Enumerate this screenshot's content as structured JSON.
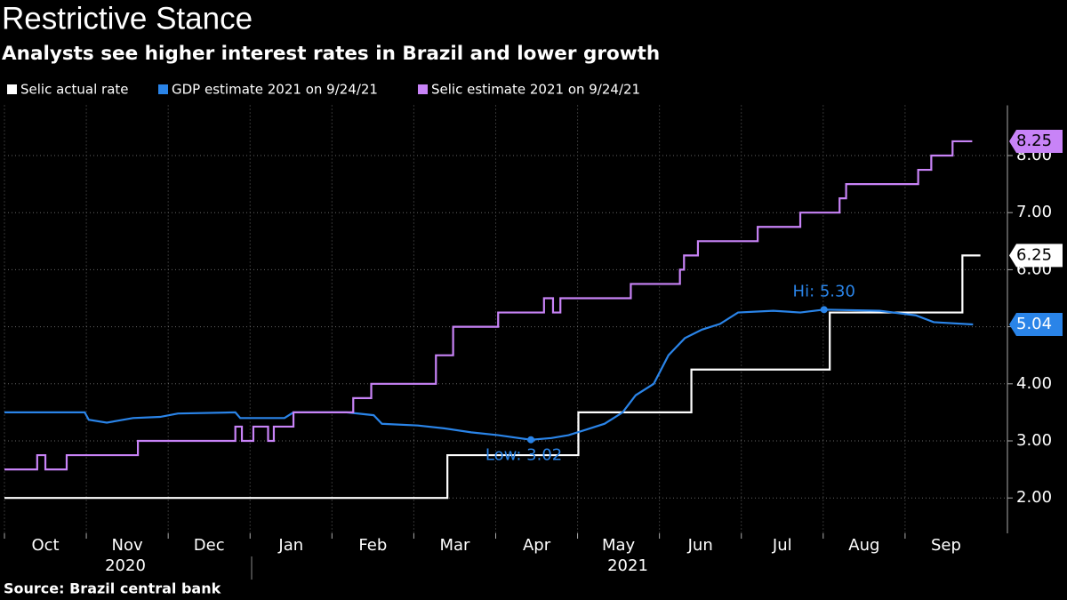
{
  "chart_data": {
    "type": "line",
    "title": "Restrictive Stance",
    "subtitle": "Analysts see higher interest rates in Brazil and lower growth",
    "source": "Source:  Brazil central bank",
    "years": [
      "2020",
      "2021"
    ],
    "xlim": [
      0,
      12.25
    ],
    "xticks": [
      {
        "value": 0.5,
        "label": "Oct"
      },
      {
        "value": 1.5,
        "label": "Nov"
      },
      {
        "value": 2.5,
        "label": "Dec"
      },
      {
        "value": 3.5,
        "label": "Jan"
      },
      {
        "value": 4.5,
        "label": "Feb"
      },
      {
        "value": 5.5,
        "label": "Mar"
      },
      {
        "value": 6.5,
        "label": "Apr"
      },
      {
        "value": 7.5,
        "label": "May"
      },
      {
        "value": 8.5,
        "label": "Jun"
      },
      {
        "value": 9.5,
        "label": "Jul"
      },
      {
        "value": 10.5,
        "label": "Aug"
      },
      {
        "value": 11.5,
        "label": "Sep"
      }
    ],
    "ylim": [
      1.38,
      8.88
    ],
    "yticks": [
      {
        "value": 2,
        "label": "2.00"
      },
      {
        "value": 3,
        "label": "3.00"
      },
      {
        "value": 4,
        "label": "4.00"
      },
      {
        "value": 5,
        "label": "5.00"
      },
      {
        "value": 6,
        "label": "6.00"
      },
      {
        "value": 7,
        "label": "7.00"
      },
      {
        "value": 8,
        "label": "8.00"
      }
    ],
    "grid": true,
    "series": [
      {
        "name": "Selic actual rate",
        "color": "#ffffff",
        "step": true,
        "x": [
          0,
          5.41,
          7.01,
          8.39,
          10.08,
          11.7,
          11.92
        ],
        "values": [
          2,
          2.75,
          3.5,
          4.25,
          5.25,
          6.25,
          6.25
        ]
      },
      {
        "name": "GDP estimate 2021 on 9/24/21",
        "color": "#2a84e8",
        "step": false,
        "x": [
          0,
          0.98,
          1.03,
          1.25,
          1.57,
          1.9,
          2.12,
          2.82,
          2.88,
          3.42,
          3.53,
          4.18,
          4.51,
          4.61,
          5.05,
          5.37,
          5.7,
          6.03,
          6.43,
          6.68,
          6.89,
          7.11,
          7.33,
          7.55,
          7.71,
          7.93,
          8.11,
          8.31,
          8.52,
          8.74,
          8.96,
          9.39,
          9.72,
          10.01,
          10.69,
          11.13,
          11.35,
          11.83
        ],
        "values": [
          3.5,
          3.5,
          3.37,
          3.32,
          3.4,
          3.42,
          3.48,
          3.5,
          3.4,
          3.4,
          3.5,
          3.5,
          3.45,
          3.3,
          3.27,
          3.22,
          3.15,
          3.1,
          3.02,
          3.05,
          3.1,
          3.2,
          3.3,
          3.5,
          3.8,
          4.0,
          4.5,
          4.8,
          4.95,
          5.05,
          5.25,
          5.28,
          5.25,
          5.3,
          5.28,
          5.2,
          5.08,
          5.04
        ]
      },
      {
        "name": "Selic estimate 2021 on 9/24/21",
        "color": "#c883f7",
        "step": true,
        "x": [
          0,
          0.4,
          0.5,
          0.76,
          1.63,
          2.82,
          2.9,
          3.04,
          3.22,
          3.29,
          3.53,
          4.26,
          4.48,
          5.27,
          5.48,
          6.03,
          6.59,
          6.7,
          6.79,
          7.65,
          8.25,
          8.3,
          8.47,
          9.2,
          9.72,
          10.2,
          10.28,
          11.16,
          11.32,
          11.58,
          11.82
        ],
        "values": [
          2.5,
          2.75,
          2.5,
          2.75,
          3,
          3.25,
          3,
          3.25,
          3,
          3.25,
          3.5,
          3.75,
          4,
          4.5,
          5,
          5.25,
          5.5,
          5.25,
          5.5,
          5.75,
          6,
          6.25,
          6.5,
          6.75,
          7,
          7.25,
          7.5,
          7.75,
          8,
          8.25,
          8.25
        ]
      }
    ],
    "annotations": [
      {
        "label": "Hi: 5.30",
        "x": 10.01,
        "value": 5.3
      },
      {
        "label": "Low: 3.02",
        "x": 6.43,
        "value": 3.02
      }
    ]
  }
}
